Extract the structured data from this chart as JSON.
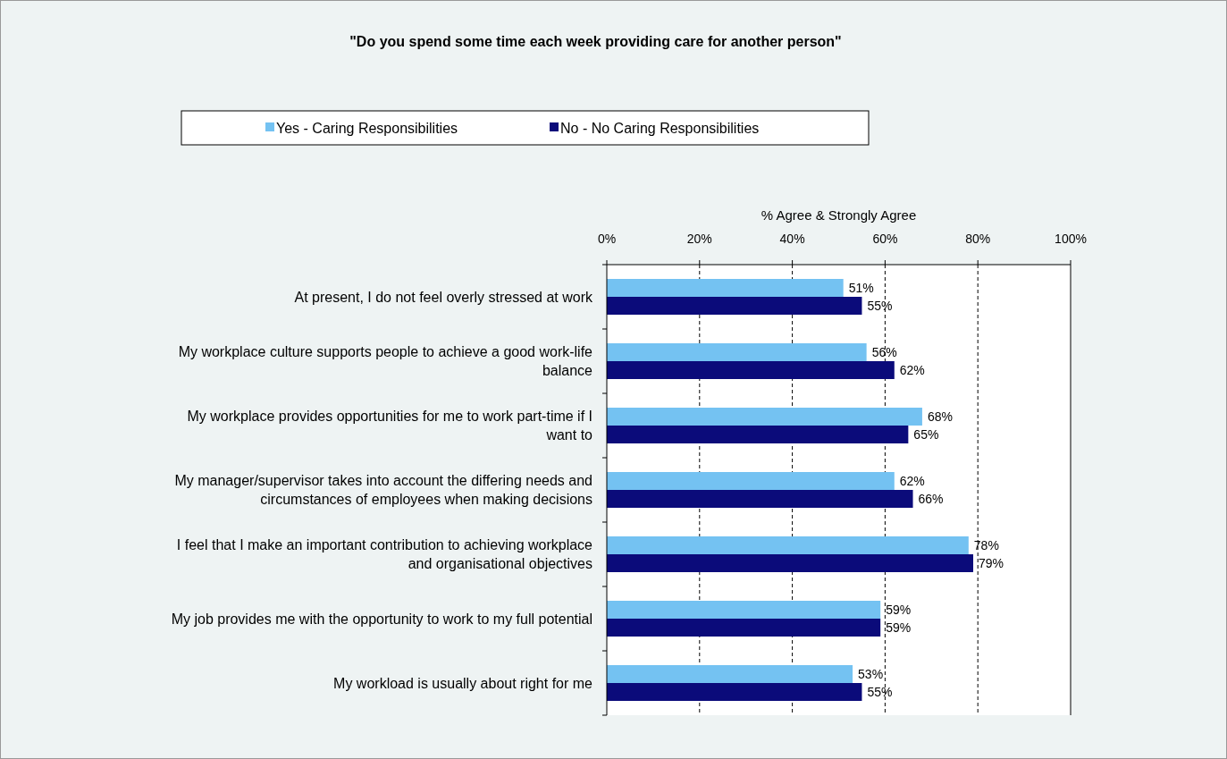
{
  "chart_data": {
    "type": "bar",
    "orientation": "horizontal",
    "title": "\"Do you spend some time each week providing care for another person\"",
    "xlabel": "% Agree & Strongly Agree",
    "categories": [
      "At present, I do not feel overly stressed at work",
      "My workplace culture supports people to achieve a good work-life balance",
      "My workplace provides opportunities for me to work part-time if I want to",
      "My manager/supervisor takes into account the differing needs and circumstances of employees when making decisions",
      "I feel that I make an important contribution to achieving workplace and organisational objectives",
      "My job provides me with the opportunity to work to my full potential",
      "My workload is usually about right for me"
    ],
    "series": [
      {
        "name": "Yes - Caring Responsibilities",
        "color": "#74c2f2",
        "values": [
          51,
          56,
          68,
          62,
          78,
          59,
          53
        ],
        "value_labels": [
          "51%",
          "56%",
          "68%",
          "62%",
          "78%",
          "59%",
          "53%"
        ]
      },
      {
        "name": "No - No Caring Responsibilities",
        "color": "#0b0b7a",
        "values": [
          55,
          62,
          65,
          66,
          79,
          59,
          55
        ],
        "value_labels": [
          "55%",
          "62%",
          "65%",
          "66%",
          "79%",
          "59%",
          "55%"
        ]
      }
    ],
    "xlim": [
      0,
      100
    ],
    "xticks": [
      {
        "value": 0,
        "label": "0%"
      },
      {
        "value": 20,
        "label": "20%"
      },
      {
        "value": 40,
        "label": "40%"
      },
      {
        "value": 60,
        "label": "60%"
      },
      {
        "value": 80,
        "label": "80%"
      },
      {
        "value": 100,
        "label": "100%"
      }
    ],
    "grid": "x",
    "line_style": "dashed",
    "legend": "top"
  }
}
